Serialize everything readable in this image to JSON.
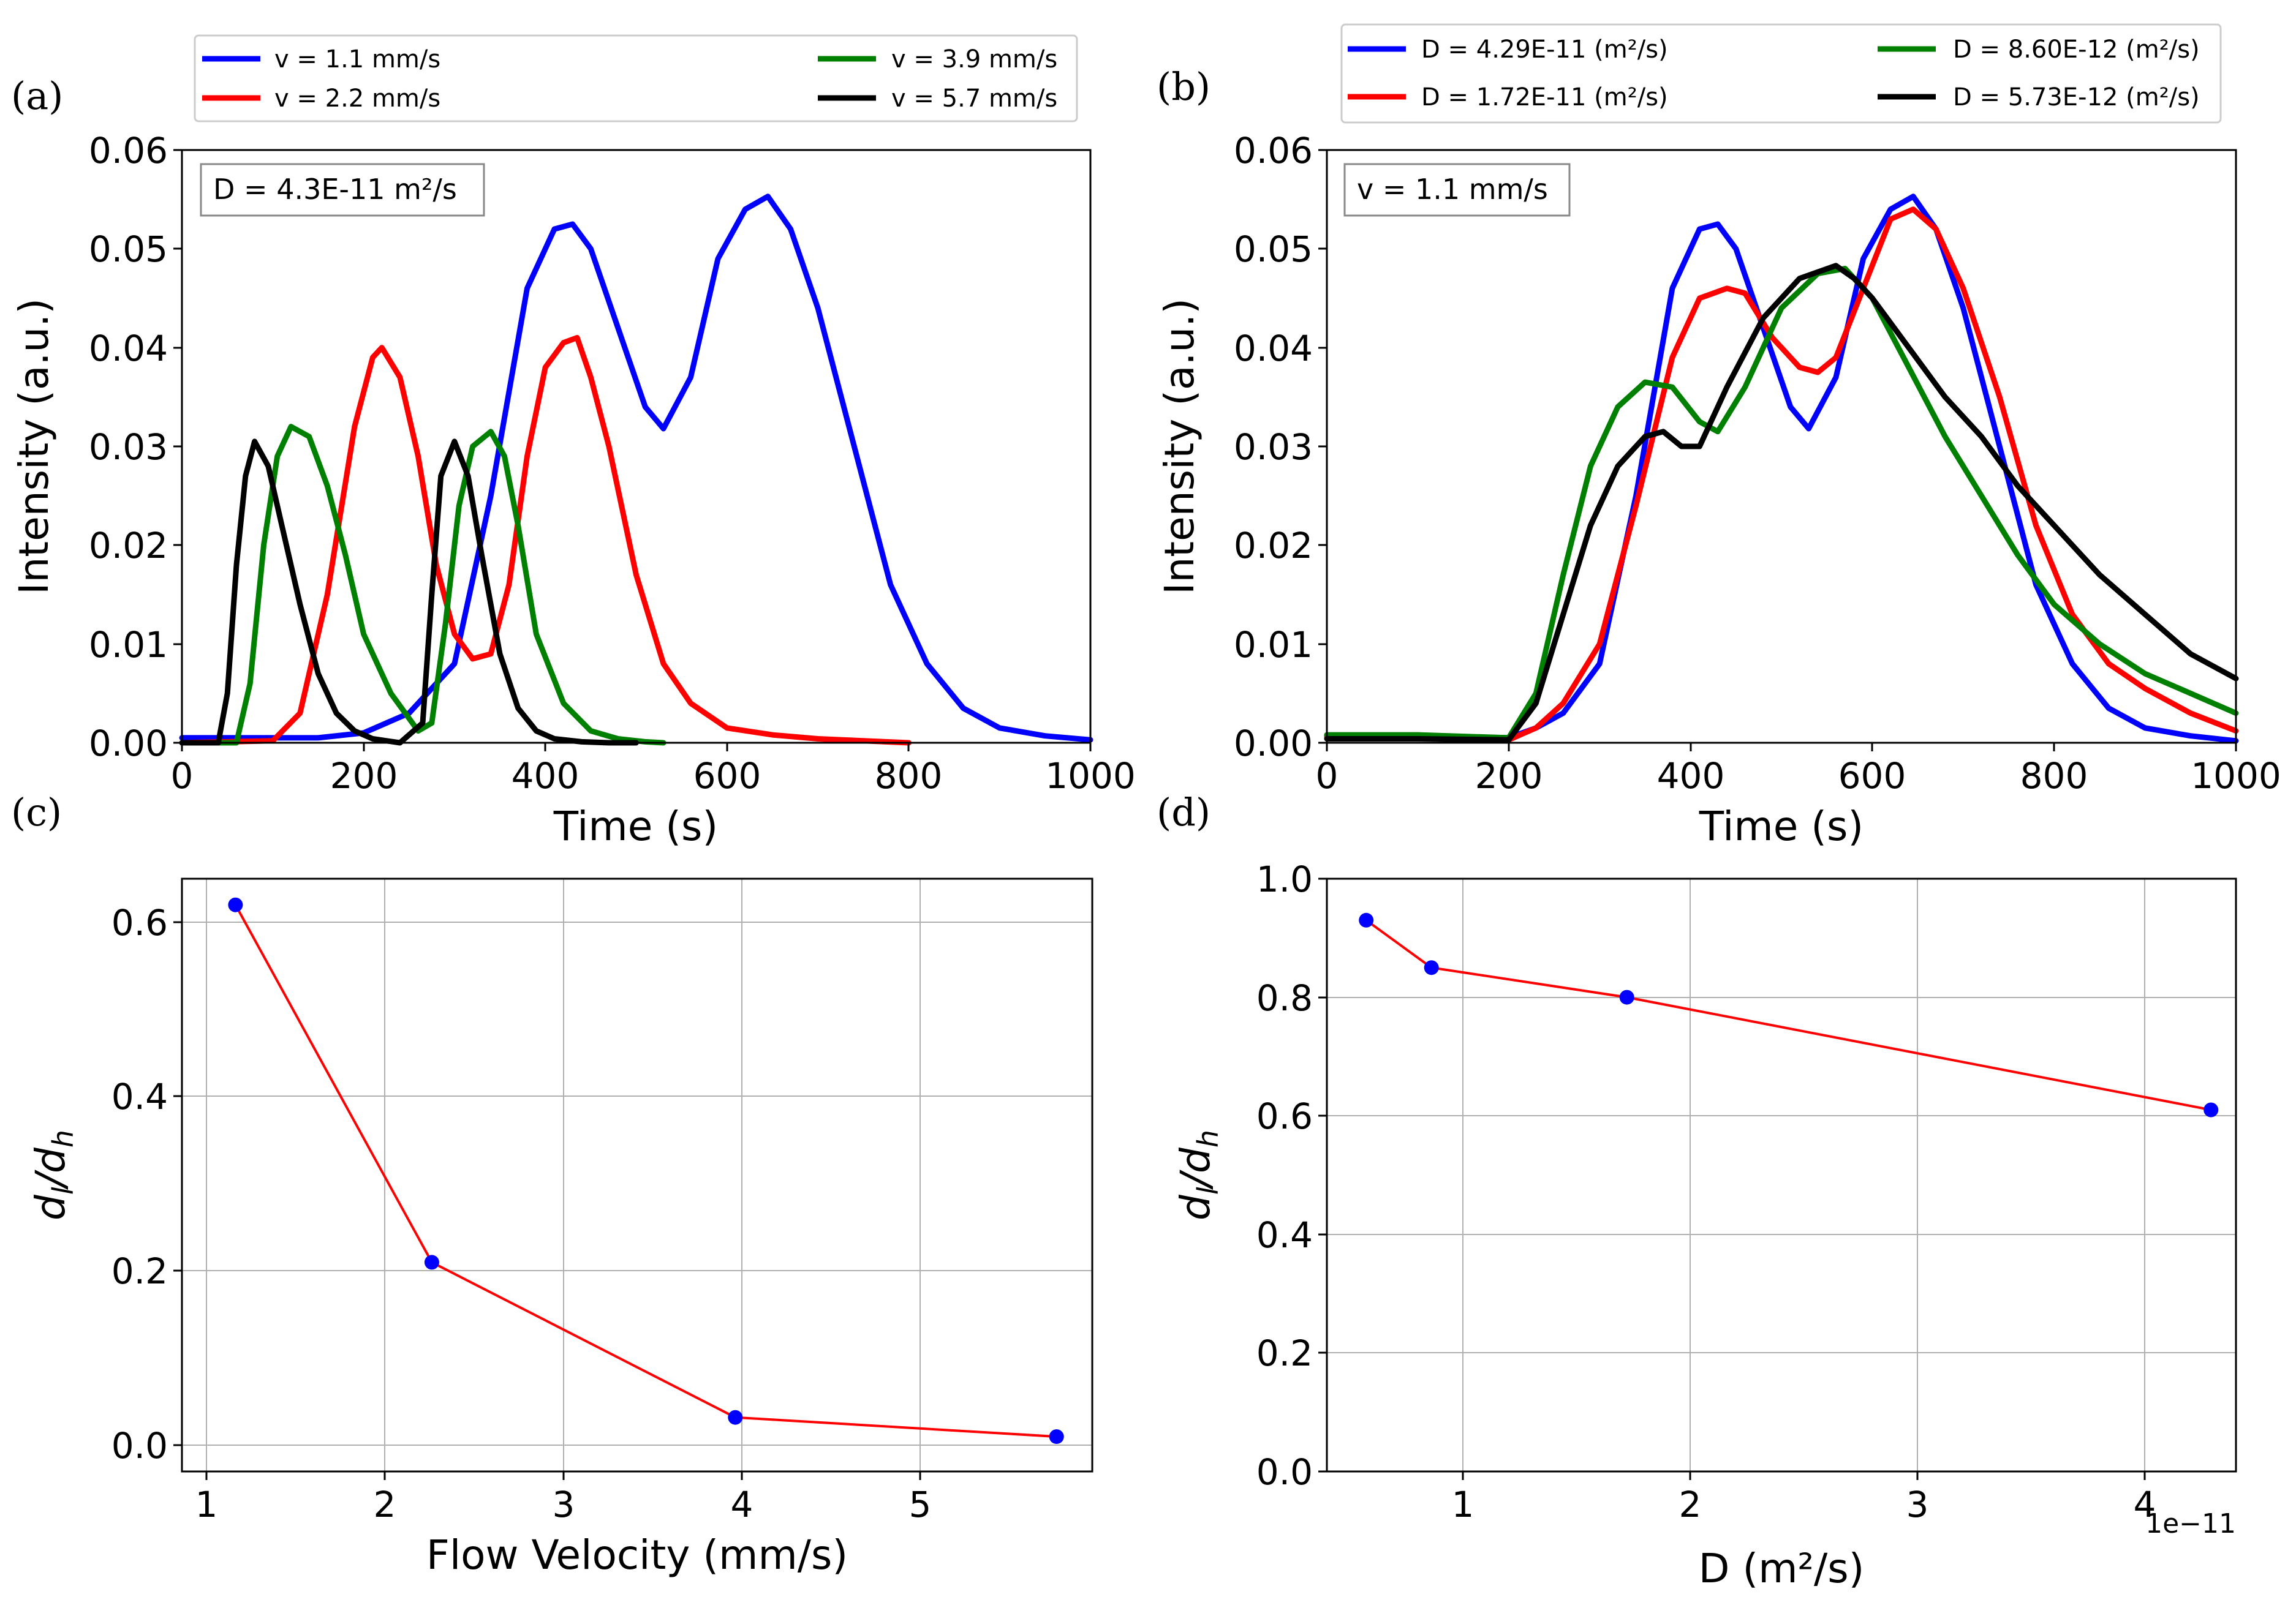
{
  "chart_data": [
    {
      "panel_label": "(a)",
      "type": "line",
      "xlabel": "Time (s)",
      "ylabel": "Intensity (a.u.)",
      "xlim": [
        0,
        1000
      ],
      "ylim": [
        0,
        0.06
      ],
      "xticks": [
        "0",
        "200",
        "400",
        "600",
        "800",
        "1000"
      ],
      "yticks": [
        "0.00",
        "0.01",
        "0.02",
        "0.03",
        "0.04",
        "0.05",
        "0.06"
      ],
      "grid": false,
      "annotation": "D = 4.3E-11 m²/s",
      "legend_position": "above",
      "series": [
        {
          "name": "v = 1.1 mm/s",
          "color": "#0000ff",
          "x": [
            0,
            100,
            150,
            200,
            250,
            300,
            340,
            380,
            410,
            430,
            450,
            480,
            510,
            530,
            560,
            590,
            620,
            645,
            670,
            700,
            740,
            780,
            820,
            860,
            900,
            950,
            1000
          ],
          "y": [
            0.0005,
            0.0005,
            0.0005,
            0.001,
            0.003,
            0.008,
            0.025,
            0.046,
            0.052,
            0.0525,
            0.05,
            0.042,
            0.034,
            0.0318,
            0.037,
            0.049,
            0.054,
            0.0553,
            0.052,
            0.044,
            0.03,
            0.016,
            0.008,
            0.0035,
            0.0015,
            0.0007,
            0.0003
          ]
        },
        {
          "name": "v = 2.2 mm/s",
          "color": "#ff0000",
          "x": [
            0,
            100,
            130,
            160,
            190,
            210,
            220,
            240,
            260,
            280,
            300,
            320,
            340,
            360,
            380,
            400,
            420,
            435,
            450,
            470,
            500,
            530,
            560,
            600,
            650,
            700,
            750,
            800
          ],
          "y": [
            0,
            0.0002,
            0.003,
            0.015,
            0.032,
            0.039,
            0.04,
            0.037,
            0.029,
            0.018,
            0.011,
            0.0085,
            0.009,
            0.016,
            0.029,
            0.038,
            0.0405,
            0.041,
            0.037,
            0.03,
            0.017,
            0.008,
            0.004,
            0.0015,
            0.0008,
            0.0004,
            0.0002,
            0
          ]
        },
        {
          "name": "v = 3.9 mm/s",
          "color": "#008000",
          "x": [
            0,
            60,
            75,
            90,
            105,
            120,
            140,
            160,
            180,
            200,
            230,
            260,
            275,
            290,
            305,
            320,
            340,
            355,
            370,
            390,
            420,
            450,
            480,
            510,
            530
          ],
          "y": [
            0,
            0,
            0.006,
            0.02,
            0.029,
            0.032,
            0.031,
            0.026,
            0.019,
            0.011,
            0.005,
            0.0012,
            0.002,
            0.012,
            0.024,
            0.03,
            0.0315,
            0.029,
            0.022,
            0.011,
            0.004,
            0.0012,
            0.0004,
            0.0001,
            0
          ]
        },
        {
          "name": "v = 5.7 mm/s",
          "color": "#000000",
          "x": [
            0,
            40,
            50,
            60,
            70,
            80,
            95,
            110,
            130,
            150,
            170,
            190,
            210,
            240,
            265,
            275,
            285,
            300,
            315,
            330,
            350,
            370,
            390,
            410,
            440,
            470,
            500
          ],
          "y": [
            0,
            0,
            0.005,
            0.018,
            0.027,
            0.0305,
            0.028,
            0.022,
            0.014,
            0.007,
            0.003,
            0.0012,
            0.0004,
            0,
            0.002,
            0.015,
            0.027,
            0.0305,
            0.027,
            0.019,
            0.009,
            0.0035,
            0.0012,
            0.0004,
            0.0001,
            0,
            0
          ]
        }
      ]
    },
    {
      "panel_label": "(b)",
      "type": "line",
      "xlabel": "Time (s)",
      "ylabel": "Intensity (a.u.)",
      "xlim": [
        0,
        1000
      ],
      "ylim": [
        0,
        0.06
      ],
      "xticks": [
        "0",
        "200",
        "400",
        "600",
        "800",
        "1000"
      ],
      "yticks": [
        "0.00",
        "0.01",
        "0.02",
        "0.03",
        "0.04",
        "0.05",
        "0.06"
      ],
      "grid": false,
      "annotation": "v = 1.1 mm/s",
      "legend_position": "above",
      "series": [
        {
          "name": "D = 4.29E-11 (m²/s)",
          "color": "#0000ff",
          "x": [
            0,
            100,
            200,
            230,
            260,
            300,
            340,
            380,
            410,
            430,
            450,
            480,
            510,
            530,
            560,
            590,
            620,
            645,
            670,
            700,
            740,
            780,
            820,
            860,
            900,
            950,
            1000
          ],
          "y": [
            0.0007,
            0.0007,
            0.0005,
            0.0015,
            0.003,
            0.008,
            0.025,
            0.046,
            0.052,
            0.0525,
            0.05,
            0.042,
            0.034,
            0.0318,
            0.037,
            0.049,
            0.054,
            0.0553,
            0.052,
            0.044,
            0.03,
            0.016,
            0.008,
            0.0035,
            0.0015,
            0.0007,
            0.0002
          ]
        },
        {
          "name": "D = 1.72E-11 (m²/s)",
          "color": "#ff0000",
          "x": [
            0,
            100,
            200,
            230,
            260,
            300,
            340,
            380,
            410,
            440,
            460,
            490,
            520,
            540,
            560,
            590,
            620,
            645,
            670,
            700,
            740,
            780,
            820,
            860,
            900,
            950,
            1000
          ],
          "y": [
            0.0005,
            0.0005,
            0.0003,
            0.0015,
            0.004,
            0.01,
            0.024,
            0.039,
            0.045,
            0.046,
            0.0455,
            0.041,
            0.038,
            0.0375,
            0.039,
            0.046,
            0.053,
            0.054,
            0.052,
            0.046,
            0.035,
            0.022,
            0.013,
            0.008,
            0.0055,
            0.003,
            0.0012
          ]
        },
        {
          "name": "D = 8.60E-12 (m²/s)",
          "color": "#008000",
          "x": [
            0,
            100,
            200,
            230,
            260,
            290,
            320,
            350,
            380,
            410,
            430,
            460,
            500,
            540,
            570,
            600,
            640,
            680,
            720,
            760,
            800,
            850,
            900,
            950,
            1000
          ],
          "y": [
            0.0008,
            0.0008,
            0.0005,
            0.005,
            0.017,
            0.028,
            0.034,
            0.0365,
            0.036,
            0.0325,
            0.0315,
            0.036,
            0.044,
            0.0475,
            0.048,
            0.045,
            0.038,
            0.031,
            0.025,
            0.019,
            0.014,
            0.01,
            0.007,
            0.005,
            0.003
          ]
        },
        {
          "name": "D = 5.73E-12 (m²/s)",
          "color": "#000000",
          "x": [
            0,
            100,
            200,
            230,
            260,
            290,
            320,
            350,
            370,
            390,
            410,
            440,
            480,
            520,
            560,
            580,
            600,
            640,
            680,
            720,
            760,
            800,
            850,
            900,
            950,
            1000
          ],
          "y": [
            0.0004,
            0.0004,
            0.0003,
            0.004,
            0.013,
            0.022,
            0.028,
            0.031,
            0.0315,
            0.03,
            0.03,
            0.036,
            0.043,
            0.047,
            0.0483,
            0.047,
            0.045,
            0.04,
            0.035,
            0.031,
            0.026,
            0.022,
            0.017,
            0.013,
            0.009,
            0.0065
          ]
        }
      ]
    },
    {
      "panel_label": "(c)",
      "type": "line",
      "xlabel": "Flow Velocity (mm/s)",
      "ylabel": "dl/dh",
      "xlim": [
        0.8,
        5.9
      ],
      "ylim": [
        -0.04,
        0.64
      ],
      "xticks": [
        "1",
        "2",
        "3",
        "4",
        "5"
      ],
      "yticks": [
        "0.0",
        "0.2",
        "0.4",
        "0.6"
      ],
      "grid": true,
      "series": [
        {
          "name": "dl/dh",
          "line_color": "#ff0000",
          "marker_color": "#0000ff",
          "x": [
            1.1,
            2.2,
            3.9,
            5.7
          ],
          "y": [
            0.61,
            0.2,
            0.022,
            0
          ]
        }
      ]
    },
    {
      "panel_label": "(d)",
      "type": "line",
      "xlabel": "D (m²/s)",
      "x_offset_text": "1e−11",
      "ylabel": "dl/dh",
      "xlim": [
        0.4,
        4.4
      ],
      "ylim": [
        0,
        1.0
      ],
      "xticks": [
        "1",
        "2",
        "3",
        "4"
      ],
      "yticks": [
        "0.0",
        "0.2",
        "0.4",
        "0.6",
        "0.8",
        "1.0"
      ],
      "grid": true,
      "series": [
        {
          "name": "dl/dh",
          "line_color": "#ff0000",
          "marker_color": "#0000ff",
          "x": [
            0.573,
            0.86,
            1.72,
            4.29
          ],
          "y": [
            0.93,
            0.85,
            0.8,
            0.61
          ]
        }
      ]
    }
  ]
}
